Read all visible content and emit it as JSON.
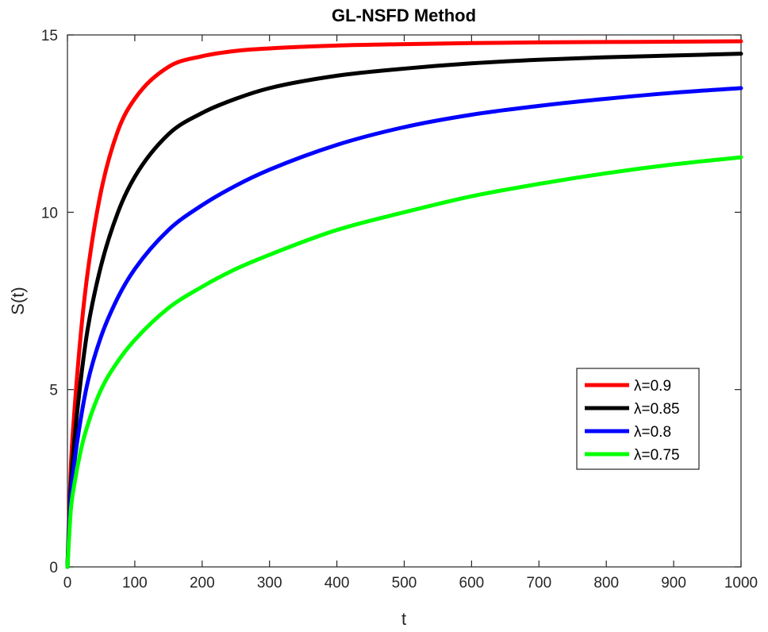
{
  "chart_data": {
    "type": "line",
    "title": "GL-NSFD Method",
    "xlabel": "t",
    "ylabel": "S(t)",
    "xlim": [
      0,
      1000
    ],
    "ylim": [
      0,
      15
    ],
    "xticks": [
      0,
      100,
      200,
      300,
      400,
      500,
      600,
      700,
      800,
      900,
      1000
    ],
    "yticks": [
      0,
      5,
      10,
      15
    ],
    "grid": false,
    "legend_position": "bottom-right",
    "series": [
      {
        "name": "λ=0.9",
        "color": "#ff0000",
        "x": [
          0,
          5,
          10,
          20,
          30,
          50,
          75,
          100,
          150,
          200,
          250,
          300,
          400,
          500,
          600,
          700,
          800,
          900,
          1000
        ],
        "y": [
          0,
          2.8,
          4.3,
          6.6,
          8.3,
          10.6,
          12.3,
          13.2,
          14.1,
          14.4,
          14.55,
          14.62,
          14.7,
          14.74,
          14.77,
          14.79,
          14.8,
          14.81,
          14.82
        ]
      },
      {
        "name": "λ=0.85",
        "color": "#000000",
        "x": [
          0,
          5,
          10,
          20,
          30,
          50,
          75,
          100,
          150,
          200,
          250,
          300,
          400,
          500,
          600,
          700,
          800,
          900,
          1000
        ],
        "y": [
          0,
          2.3,
          3.5,
          5.3,
          6.7,
          8.5,
          10.0,
          11.0,
          12.2,
          12.8,
          13.2,
          13.5,
          13.85,
          14.05,
          14.2,
          14.3,
          14.37,
          14.42,
          14.47
        ]
      },
      {
        "name": "λ=0.8",
        "color": "#0000ff",
        "x": [
          0,
          5,
          10,
          20,
          30,
          50,
          75,
          100,
          150,
          200,
          250,
          300,
          400,
          500,
          600,
          700,
          800,
          900,
          1000
        ],
        "y": [
          0,
          2.0,
          2.9,
          4.2,
          5.2,
          6.5,
          7.6,
          8.4,
          9.5,
          10.2,
          10.75,
          11.2,
          11.9,
          12.4,
          12.75,
          13.0,
          13.2,
          13.37,
          13.5
        ]
      },
      {
        "name": "λ=0.75",
        "color": "#00ff00",
        "x": [
          0,
          5,
          10,
          20,
          30,
          50,
          75,
          100,
          150,
          200,
          250,
          300,
          400,
          500,
          600,
          700,
          800,
          900,
          1000
        ],
        "y": [
          0,
          1.6,
          2.3,
          3.3,
          4.0,
          5.0,
          5.8,
          6.4,
          7.3,
          7.9,
          8.4,
          8.8,
          9.5,
          10.0,
          10.45,
          10.8,
          11.1,
          11.35,
          11.55
        ]
      }
    ]
  }
}
